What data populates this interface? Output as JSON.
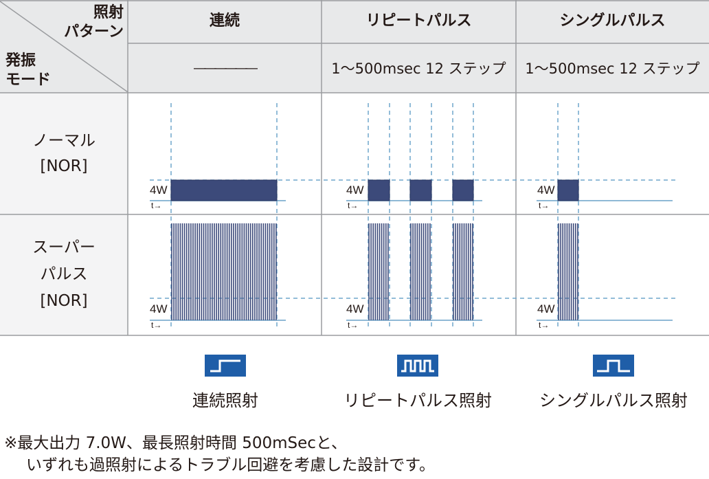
{
  "header": {
    "corner_top": [
      "照射",
      "パターン"
    ],
    "corner_bottom": [
      "発振",
      "モード"
    ],
    "columns": [
      {
        "label": "連続",
        "detail": "――――――"
      },
      {
        "label": "リピートパルス",
        "detail": "1〜500msec 12 ステップ"
      },
      {
        "label": "シングルパルス",
        "detail": "1〜500msec 12 ステップ"
      }
    ]
  },
  "rows": [
    {
      "label": [
        "ノーマル",
        "[NOR]"
      ]
    },
    {
      "label": [
        "スーパー",
        "パルス",
        "[NOR]"
      ]
    }
  ],
  "waveform": {
    "power_label": "4W",
    "time_label": "t→"
  },
  "legend": [
    {
      "label": "連続照射",
      "icon": "continuous-wave-icon"
    },
    {
      "label": "リピートパルス照射",
      "icon": "repeat-pulse-icon"
    },
    {
      "label": "シングルパルス照射",
      "icon": "single-pulse-icon"
    }
  ],
  "footnote": [
    "※最大出力 7.0W、最長照射時間 500mSecと、",
    "いずれも過照射によるトラブル回避を考慮した設計です。"
  ],
  "colors": {
    "header_bg": "#e8e9ea",
    "row_bg": "#f4f4f5",
    "border": "#9a9c9f",
    "pulse": "#3c4a7a",
    "baseline": "#8fb9d6",
    "dashed": "#6fa6cc",
    "icon_bg": "#1f5ea8"
  }
}
